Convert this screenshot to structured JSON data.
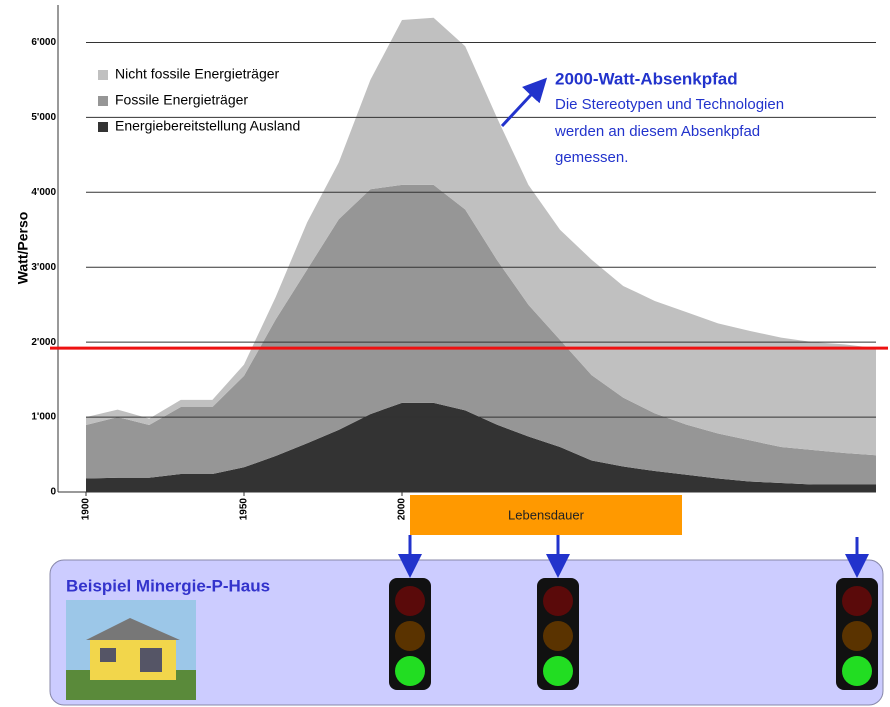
{
  "chart_data": {
    "type": "stacked_area",
    "y_label": "Watt/Perso",
    "x": [
      1900,
      1910,
      1920,
      1930,
      1940,
      1950,
      1960,
      1970,
      1980,
      1990,
      2000,
      2010,
      2020,
      2030,
      2040,
      2050,
      2060,
      2070,
      2080,
      2090,
      2100,
      2110,
      2120,
      2130,
      2140,
      2150
    ],
    "series": [
      {
        "name": "Energiebereitstellung Ausland",
        "color": "#333333",
        "values": [
          180,
          190,
          190,
          240,
          240,
          330,
          480,
          650,
          830,
          1040,
          1190,
          1190,
          1090,
          900,
          740,
          600,
          420,
          340,
          280,
          230,
          180,
          140,
          120,
          100,
          100,
          100
        ]
      },
      {
        "name": "Fossile Energieträger",
        "color": "#969696",
        "values": [
          715,
          810,
          705,
          895,
          895,
          1220,
          1820,
          2320,
          2810,
          3000,
          2910,
          2910,
          2680,
          2200,
          1760,
          1430,
          1140,
          920,
          770,
          670,
          600,
          550,
          480,
          460,
          420,
          390
        ]
      },
      {
        "name": "Nicht fossile Energieträger",
        "color": "#c0c0c0",
        "values": [
          105,
          100,
          85,
          95,
          95,
          150,
          300,
          630,
          760,
          1460,
          2200,
          2230,
          2180,
          1900,
          1600,
          1470,
          1540,
          1490,
          1500,
          1500,
          1470,
          1460,
          1460,
          1440,
          1450,
          1430
        ]
      }
    ],
    "xlim": [
      1900,
      2150
    ],
    "xticks": [
      1900,
      1950,
      2000
    ],
    "ylim": [
      0,
      6500
    ],
    "yticks": [
      0,
      {
        "value": 1000,
        "label": "1'000"
      },
      {
        "value": 2000,
        "label": "2'000"
      },
      {
        "value": 3000,
        "label": "3'000"
      },
      {
        "value": 4000,
        "label": "4'000"
      },
      {
        "value": 5000,
        "label": "5'000"
      },
      {
        "value": 6000,
        "label": "6'000"
      }
    ],
    "grid": true,
    "legend": "upper left",
    "reference_line": {
      "value": 1920,
      "color": "#ee1111"
    },
    "annotation": {
      "title": "2000-Watt-Absenkpfad",
      "lines": [
        "Die Stereotypen und Technologien",
        "werden an diesem Absenkpfad",
        "gemessen."
      ]
    },
    "lifespan_label": "Lebensdauer",
    "panel_title": "Beispiel Minergie-P-Haus"
  }
}
